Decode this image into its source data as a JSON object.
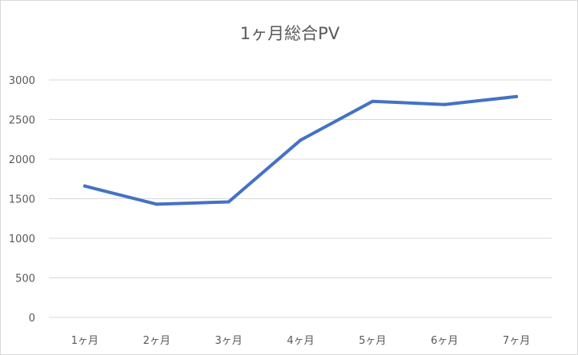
{
  "chart_data": {
    "type": "line",
    "title": "1ヶ月総合PV",
    "xlabel": "",
    "ylabel": "",
    "categories": [
      "1ヶ月",
      "2ヶ月",
      "3ヶ月",
      "4ヶ月",
      "5ヶ月",
      "6ヶ月",
      "7ヶ月"
    ],
    "series": [
      {
        "values": [
          1660,
          1430,
          1460,
          2240,
          2730,
          2690,
          2790
        ],
        "color": "#4472c4"
      }
    ],
    "ylim": [
      0,
      3000
    ],
    "yticks": [
      "0",
      "500",
      "1000",
      "1500",
      "2000",
      "2500",
      "3000"
    ],
    "grid": true,
    "legend": "none"
  }
}
